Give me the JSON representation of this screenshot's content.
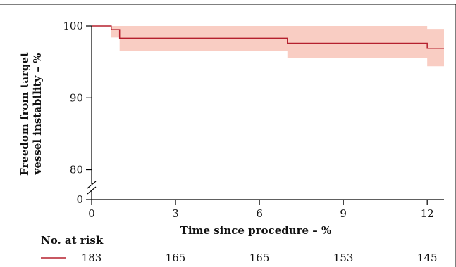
{
  "chart_data": {
    "type": "line",
    "title": "",
    "xlabel": "Time since procedure – %",
    "ylabel": "Freedom from target vessel instability – %",
    "ylabel_lines": [
      "Freedom from target",
      "vessel instability – %"
    ],
    "xlim": [
      0,
      12.6
    ],
    "ylim": [
      78,
      100
    ],
    "axis_break": true,
    "x_ticks": [
      {
        "value": 0,
        "label": "0"
      },
      {
        "value": 3,
        "label": "3"
      },
      {
        "value": 6,
        "label": "6"
      },
      {
        "value": 9,
        "label": "9"
      },
      {
        "value": 12,
        "label": "12"
      }
    ],
    "y_ticks": [
      {
        "value": 100,
        "label": "100"
      },
      {
        "value": 90,
        "label": "90"
      },
      {
        "value": 80,
        "label": "80"
      },
      {
        "value": 0,
        "label": "0"
      }
    ],
    "grid": false,
    "series": [
      {
        "name": "",
        "color": "#b5202e",
        "band_color": "#f9cdc3",
        "steps": [
          {
            "x": 0,
            "y": 100
          },
          {
            "x": 0.7,
            "y": 99.5
          },
          {
            "x": 1.0,
            "y": 98.3
          },
          {
            "x": 7.0,
            "y": 97.6
          },
          {
            "x": 12.0,
            "y": 96.9
          },
          {
            "x": 12.6,
            "y": 96.9
          }
        ],
        "ci_steps": [
          {
            "x": 0,
            "lower": 100,
            "upper": 100
          },
          {
            "x": 0.7,
            "lower": 98.4,
            "upper": 100
          },
          {
            "x": 1.0,
            "lower": 96.5,
            "upper": 100
          },
          {
            "x": 7.0,
            "lower": 95.5,
            "upper": 100
          },
          {
            "x": 12.0,
            "lower": 94.4,
            "upper": 99.6
          },
          {
            "x": 12.6,
            "lower": 94.4,
            "upper": 99.6
          }
        ]
      }
    ],
    "risk_table": {
      "title": "No. at risk",
      "times": [
        0,
        3,
        6,
        9,
        12
      ],
      "counts": [
        "183",
        "165",
        "165",
        "153",
        "145"
      ]
    }
  }
}
